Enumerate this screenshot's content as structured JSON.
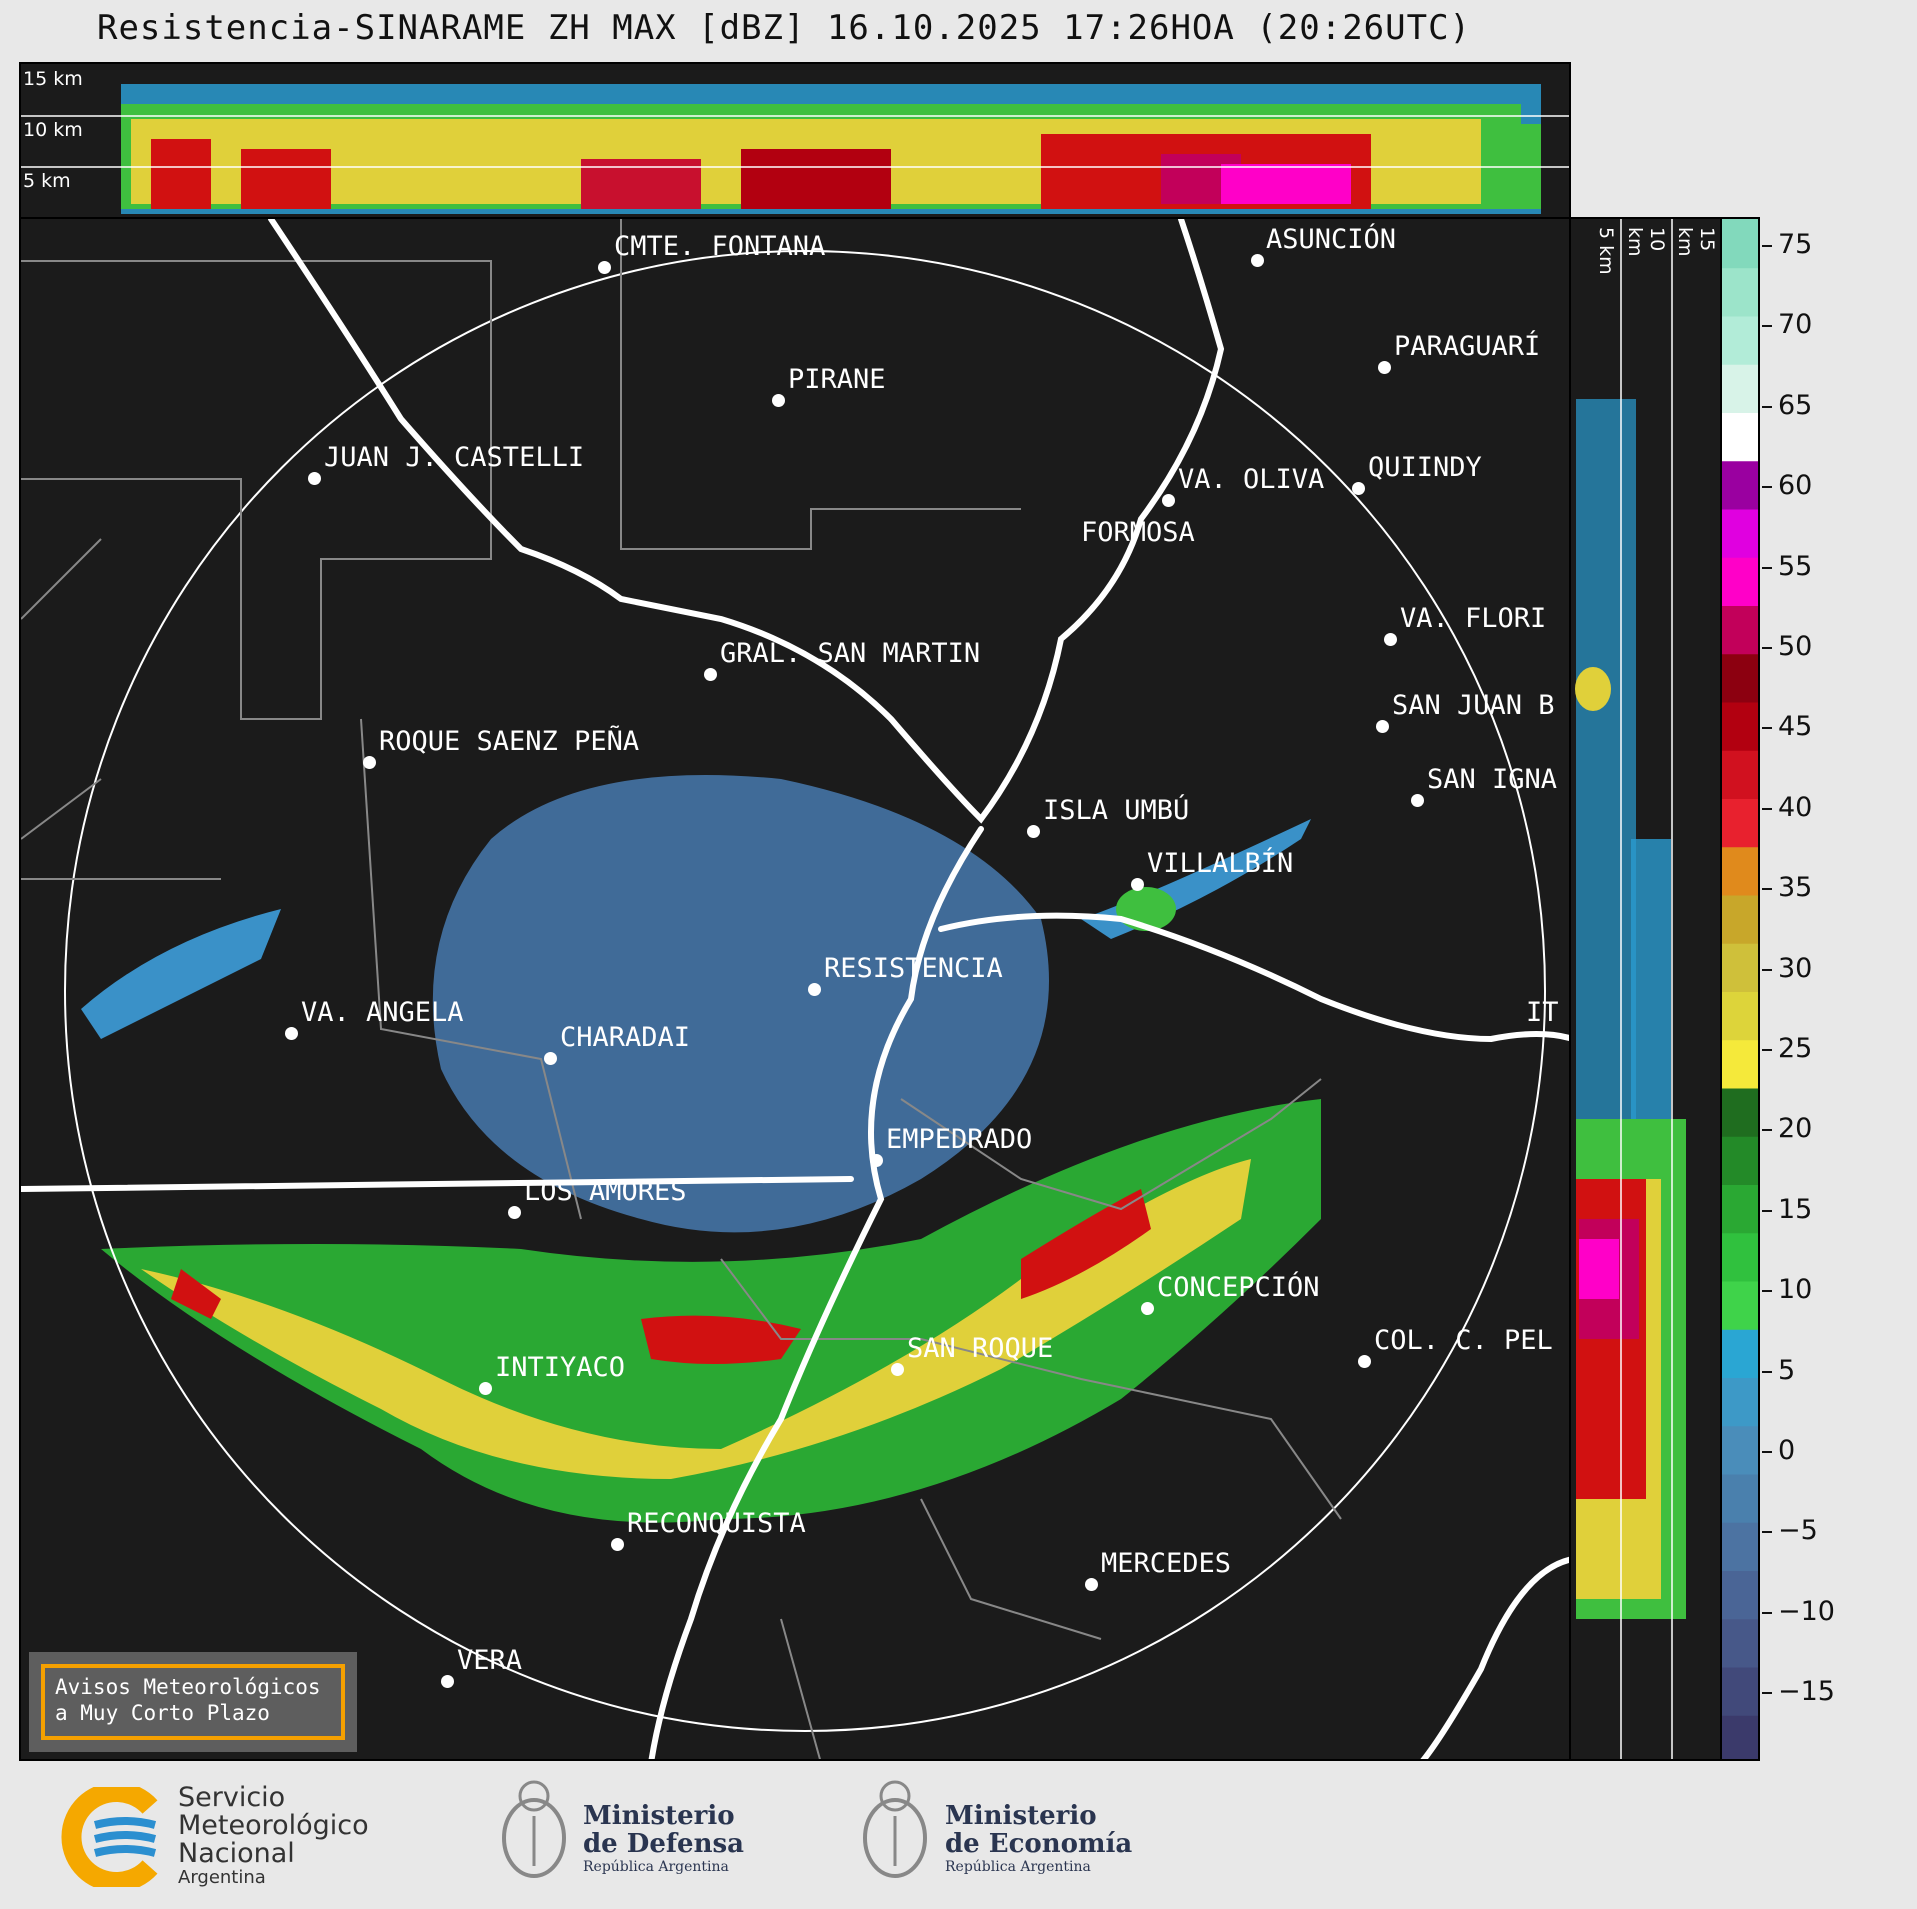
{
  "title": "Resistencia-SINARAME ZH MAX [dBZ] 16.10.2025 17:26HOA (20:26UTC)",
  "height_labels": {
    "top": [
      "15 km",
      "10 km",
      "5 km"
    ],
    "side": [
      "5 km",
      "10 km",
      "15 km"
    ]
  },
  "cities": [
    "CMTE. FONTANA",
    "ASUNCIÓN",
    "PIRANE",
    "PARAGUARÍ",
    "JUAN J. CASTELLI",
    "VA. OLIVA",
    "QUIINDY",
    "FORMOSA",
    "VA. FLORI",
    "GRAL. SAN MARTIN",
    "SAN JUAN B",
    "ROQUE SAENZ PEÑA",
    "SAN IGNA",
    "ISLA UMBÚ",
    "VILLALBÍN",
    "RESISTENCIA",
    "VA. ANGELA",
    "CHARADAI",
    "IT",
    "EMPEDRADO",
    "LOS AMORES",
    "CONCEPCIÓN",
    "SAN ROQUE",
    "COL. C. PEL",
    "INTIYACO",
    "RECONQUISTA",
    "MERCEDES",
    "VERA"
  ],
  "notice": {
    "line1": "Avisos Meteorológicos",
    "line2": "a Muy Corto Plazo"
  },
  "colorbar": {
    "ticks": [
      "75",
      "70",
      "65",
      "60",
      "55",
      "50",
      "45",
      "40",
      "35",
      "30",
      "25",
      "20",
      "15",
      "10",
      "5",
      "0",
      "−5",
      "−10",
      "−15"
    ],
    "colors": [
      "#3b3a6b",
      "#41497a",
      "#475889",
      "#4a6596",
      "#4c73a2",
      "#4a80ad",
      "#4a8dba",
      "#3d99c7",
      "#2aa6d3",
      "#3fd34a",
      "#30c13e",
      "#2aa833",
      "#238a28",
      "#1f6d1f",
      "#f5e93a",
      "#ddd43a",
      "#cfc03a",
      "#c8a72a",
      "#e08a1c",
      "#e8212e",
      "#d1111f",
      "#b20010",
      "#8c0010",
      "#c2005a",
      "#ff00c8",
      "#e000e0",
      "#9a00a0",
      "#ffffff",
      "#d8f3e8",
      "#b2ecd8",
      "#9ce4ca",
      "#82d9bc"
    ]
  },
  "footer": {
    "smn": [
      "Servicio",
      "Meteorológico",
      "Nacional",
      "Argentina"
    ],
    "defensa": [
      "Ministerio",
      "de Defensa",
      "República Argentina"
    ],
    "economia": [
      "Ministerio",
      "de Economía",
      "República Argentina"
    ]
  }
}
